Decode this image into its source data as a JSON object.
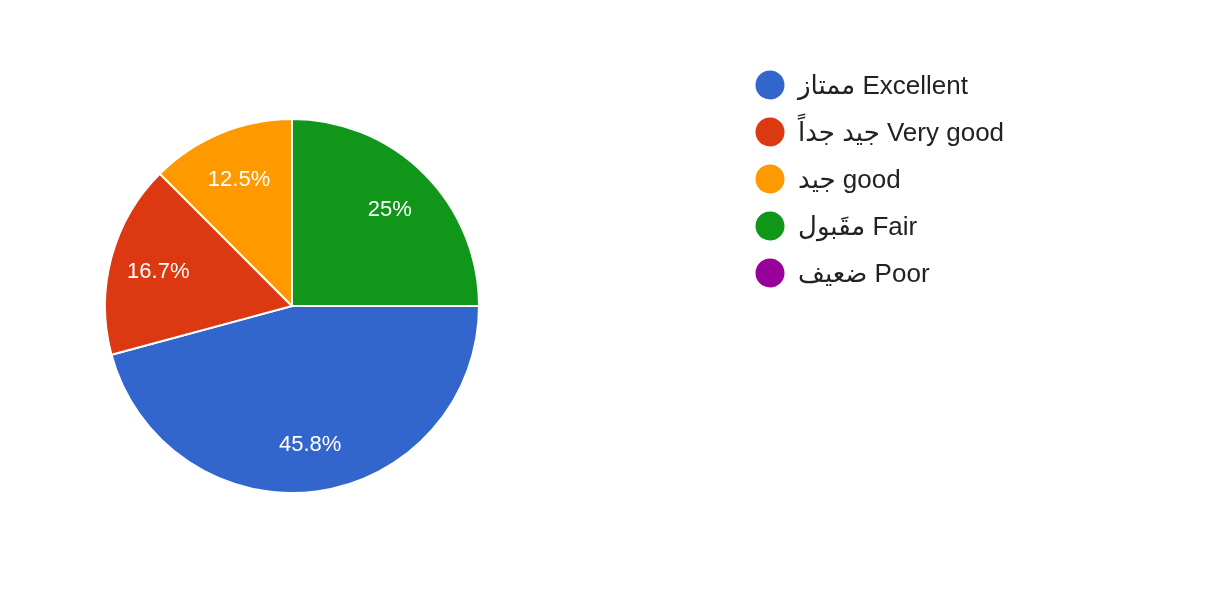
{
  "chart_data": {
    "type": "pie",
    "categories": [
      "ممتاز Excellent",
      "جيد جداً Very good",
      "جيد good",
      "مقَبول Fair",
      "ضعيف Poor"
    ],
    "values": [
      45.8,
      16.7,
      12.5,
      25,
      0
    ],
    "colors": [
      "#3366cc",
      "#dc3912",
      "#ff9900",
      "#109618",
      "#990099"
    ],
    "value_labels": [
      "45.8%",
      "16.7%",
      "12.5%",
      "25%",
      null
    ],
    "legend": "right"
  }
}
